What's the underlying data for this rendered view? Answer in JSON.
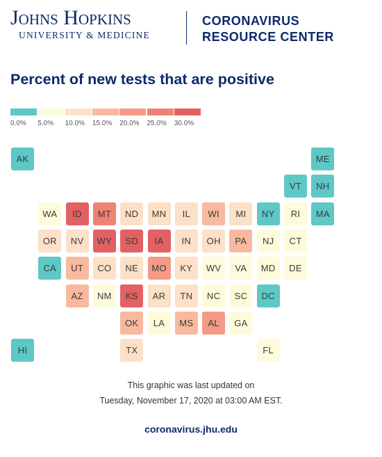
{
  "header": {
    "logo_line1": "Johns Hopkins",
    "logo_line2": "UNIVERSITY & MEDICINE",
    "resource_line1": "CORONAVIRUS",
    "resource_line2": "RESOURCE CENTER"
  },
  "title": "Percent of new tests that are positive",
  "legend": {
    "colors": [
      "#5ec8c6",
      "#fefbdc",
      "#fde0c8",
      "#f9b99e",
      "#f49a86",
      "#ee8273",
      "#e26163"
    ],
    "labels": [
      "0.0%",
      "5.0%",
      "10.0%",
      "15.0%",
      "20.0%",
      "25.0%",
      "30.0%"
    ]
  },
  "footer": {
    "line1": "This graphic was last updated on",
    "line2": "Tuesday, November 17, 2020 at 03:00 AM EST.",
    "url": "coronavirus.jhu.edu"
  },
  "chart_data": {
    "type": "tile-map",
    "title": "Percent of new tests that are positive",
    "unit": "%",
    "states": [
      {
        "abbr": "AK",
        "col": 0,
        "row": 0,
        "bin": 0
      },
      {
        "abbr": "ME",
        "col": 11,
        "row": 0,
        "bin": 0
      },
      {
        "abbr": "VT",
        "col": 10,
        "row": 1,
        "bin": 0
      },
      {
        "abbr": "NH",
        "col": 11,
        "row": 1,
        "bin": 0
      },
      {
        "abbr": "WA",
        "col": 1,
        "row": 2,
        "bin": 1
      },
      {
        "abbr": "ID",
        "col": 2,
        "row": 2,
        "bin": 6
      },
      {
        "abbr": "MT",
        "col": 3,
        "row": 2,
        "bin": 5
      },
      {
        "abbr": "ND",
        "col": 4,
        "row": 2,
        "bin": 2
      },
      {
        "abbr": "MN",
        "col": 5,
        "row": 2,
        "bin": 2
      },
      {
        "abbr": "IL",
        "col": 6,
        "row": 2,
        "bin": 2
      },
      {
        "abbr": "WI",
        "col": 7,
        "row": 2,
        "bin": 3
      },
      {
        "abbr": "MI",
        "col": 8,
        "row": 2,
        "bin": 2
      },
      {
        "abbr": "NY",
        "col": 9,
        "row": 2,
        "bin": 0
      },
      {
        "abbr": "RI",
        "col": 10,
        "row": 2,
        "bin": 1
      },
      {
        "abbr": "MA",
        "col": 11,
        "row": 2,
        "bin": 0
      },
      {
        "abbr": "OR",
        "col": 1,
        "row": 3,
        "bin": 2
      },
      {
        "abbr": "NV",
        "col": 2,
        "row": 3,
        "bin": 2
      },
      {
        "abbr": "WY",
        "col": 3,
        "row": 3,
        "bin": 6
      },
      {
        "abbr": "SD",
        "col": 4,
        "row": 3,
        "bin": 6
      },
      {
        "abbr": "IA",
        "col": 5,
        "row": 3,
        "bin": 6
      },
      {
        "abbr": "IN",
        "col": 6,
        "row": 3,
        "bin": 2
      },
      {
        "abbr": "OH",
        "col": 7,
        "row": 3,
        "bin": 2
      },
      {
        "abbr": "PA",
        "col": 8,
        "row": 3,
        "bin": 3
      },
      {
        "abbr": "NJ",
        "col": 9,
        "row": 3,
        "bin": 1
      },
      {
        "abbr": "CT",
        "col": 10,
        "row": 3,
        "bin": 1
      },
      {
        "abbr": "CA",
        "col": 1,
        "row": 4,
        "bin": 0
      },
      {
        "abbr": "UT",
        "col": 2,
        "row": 4,
        "bin": 3
      },
      {
        "abbr": "CO",
        "col": 3,
        "row": 4,
        "bin": 2
      },
      {
        "abbr": "NE",
        "col": 4,
        "row": 4,
        "bin": 2
      },
      {
        "abbr": "MO",
        "col": 5,
        "row": 4,
        "bin": 4
      },
      {
        "abbr": "KY",
        "col": 6,
        "row": 4,
        "bin": 2
      },
      {
        "abbr": "WV",
        "col": 7,
        "row": 4,
        "bin": 1
      },
      {
        "abbr": "VA",
        "col": 8,
        "row": 4,
        "bin": 1
      },
      {
        "abbr": "MD",
        "col": 9,
        "row": 4,
        "bin": 1
      },
      {
        "abbr": "DE",
        "col": 10,
        "row": 4,
        "bin": 1
      },
      {
        "abbr": "AZ",
        "col": 2,
        "row": 5,
        "bin": 3
      },
      {
        "abbr": "NM",
        "col": 3,
        "row": 5,
        "bin": 1
      },
      {
        "abbr": "KS",
        "col": 4,
        "row": 5,
        "bin": 6
      },
      {
        "abbr": "AR",
        "col": 5,
        "row": 5,
        "bin": 2
      },
      {
        "abbr": "TN",
        "col": 6,
        "row": 5,
        "bin": 2
      },
      {
        "abbr": "NC",
        "col": 7,
        "row": 5,
        "bin": 1
      },
      {
        "abbr": "SC",
        "col": 8,
        "row": 5,
        "bin": 1
      },
      {
        "abbr": "DC",
        "col": 9,
        "row": 5,
        "bin": 0
      },
      {
        "abbr": "OK",
        "col": 4,
        "row": 6,
        "bin": 3
      },
      {
        "abbr": "LA",
        "col": 5,
        "row": 6,
        "bin": 1
      },
      {
        "abbr": "MS",
        "col": 6,
        "row": 6,
        "bin": 3
      },
      {
        "abbr": "AL",
        "col": 7,
        "row": 6,
        "bin": 4
      },
      {
        "abbr": "GA",
        "col": 8,
        "row": 6,
        "bin": 1
      },
      {
        "abbr": "HI",
        "col": 0,
        "row": 7,
        "bin": 0
      },
      {
        "abbr": "TX",
        "col": 4,
        "row": 7,
        "bin": 2
      },
      {
        "abbr": "FL",
        "col": 9,
        "row": 7,
        "bin": 1
      }
    ]
  }
}
